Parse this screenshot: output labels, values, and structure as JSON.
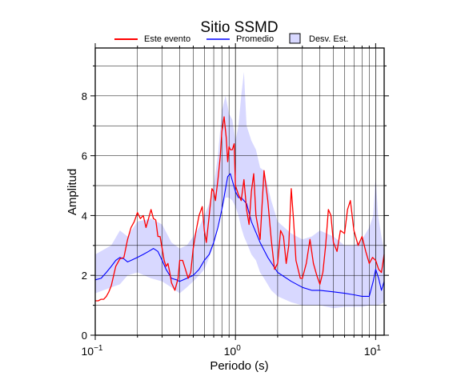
{
  "chart_data": {
    "type": "line",
    "title": "Sitio SSMD",
    "xlabel": "Periodo (s)",
    "ylabel": "Amplitud",
    "xscale": "log",
    "xlim": [
      0.1,
      11.5
    ],
    "ylim": [
      0,
      9.6
    ],
    "grid": true,
    "legend_position": "top",
    "x_tick_labels": [
      {
        "value": 0.1,
        "base": "10",
        "exp": "−1"
      },
      {
        "value": 1,
        "base": "10",
        "exp": "0"
      },
      {
        "value": 10,
        "base": "10",
        "exp": "1"
      }
    ],
    "y_ticks": [
      0,
      2,
      4,
      6,
      8
    ],
    "y_tick_labels": [
      "0",
      "2",
      "4",
      "6",
      "8"
    ],
    "legend": {
      "evento_label": "Este evento",
      "promedio_label": "Promedio",
      "desv_label": "Desv. Est."
    },
    "colors": {
      "evento": "#ff0000",
      "promedio": "#0000ff",
      "band_fill": "#d8d8ff"
    },
    "band": {
      "name": "Desv. Est.",
      "x": [
        0.1,
        0.13,
        0.15,
        0.17,
        0.2,
        0.25,
        0.3,
        0.35,
        0.4,
        0.45,
        0.5,
        0.55,
        0.6,
        0.65,
        0.7,
        0.75,
        0.8,
        0.85,
        0.9,
        0.95,
        1.0,
        1.05,
        1.1,
        1.15,
        1.2,
        1.3,
        1.4,
        1.5,
        1.6,
        1.8,
        2.0,
        2.5,
        3.0,
        3.5,
        4.0,
        5.0,
        6.0,
        7.0,
        8.0,
        9.0,
        9.6,
        10.0,
        10.4,
        11.0,
        11.5
      ],
      "upper": [
        2.7,
        3.0,
        3.5,
        3.3,
        3.8,
        3.9,
        3.7,
        3.1,
        2.9,
        3.0,
        3.3,
        3.6,
        4.0,
        4.4,
        5.0,
        6.0,
        7.5,
        8.0,
        7.4,
        7.2,
        6.5,
        7.0,
        8.0,
        8.8,
        7.0,
        6.5,
        6.2,
        5.6,
        5.5,
        4.5,
        3.8,
        3.4,
        3.2,
        3.3,
        3.5,
        3.3,
        3.0,
        3.0,
        3.2,
        3.6,
        4.0,
        5.3,
        4.0,
        3.3,
        2.8
      ],
      "lower": [
        1.4,
        1.6,
        1.7,
        2.0,
        2.1,
        1.9,
        1.8,
        1.6,
        1.4,
        1.6,
        1.8,
        2.0,
        2.2,
        2.6,
        3.0,
        3.6,
        4.2,
        4.6,
        4.6,
        4.5,
        4.3,
        4.0,
        3.6,
        3.3,
        3.1,
        2.7,
        2.5,
        2.1,
        1.9,
        1.5,
        1.3,
        1.1,
        1.0,
        1.0,
        1.0,
        0.9,
        0.95,
        0.95,
        0.95,
        1.0,
        1.0,
        1.0,
        1.0,
        1.05,
        1.1
      ]
    },
    "series": [
      {
        "name": "Promedio",
        "x": [
          0.1,
          0.11,
          0.12,
          0.13,
          0.14,
          0.15,
          0.16,
          0.17,
          0.18,
          0.2,
          0.22,
          0.24,
          0.26,
          0.28,
          0.3,
          0.32,
          0.35,
          0.38,
          0.4,
          0.45,
          0.5,
          0.55,
          0.6,
          0.65,
          0.7,
          0.75,
          0.8,
          0.85,
          0.88,
          0.92,
          1.0,
          1.05,
          1.1,
          1.2,
          1.3,
          1.5,
          1.7,
          2.0,
          2.5,
          3.0,
          3.5,
          4.0,
          5.0,
          6.0,
          7.0,
          8.0,
          9.0,
          9.6,
          10.0,
          10.5,
          11.0,
          11.5
        ],
        "values": [
          1.85,
          1.9,
          2.1,
          2.3,
          2.5,
          2.6,
          2.55,
          2.45,
          2.5,
          2.6,
          2.7,
          2.8,
          2.9,
          2.8,
          2.5,
          2.2,
          1.9,
          1.85,
          1.8,
          1.9,
          2.0,
          2.2,
          2.5,
          2.7,
          3.1,
          3.6,
          4.2,
          4.9,
          5.3,
          5.4,
          4.8,
          4.6,
          4.6,
          4.4,
          3.8,
          3.1,
          2.6,
          2.1,
          1.8,
          1.6,
          1.5,
          1.5,
          1.45,
          1.4,
          1.35,
          1.3,
          1.3,
          1.8,
          2.2,
          1.9,
          1.5,
          1.8
        ]
      },
      {
        "name": "Este evento",
        "x": [
          0.1,
          0.105,
          0.11,
          0.115,
          0.12,
          0.125,
          0.13,
          0.14,
          0.15,
          0.16,
          0.17,
          0.18,
          0.19,
          0.2,
          0.21,
          0.22,
          0.23,
          0.24,
          0.25,
          0.26,
          0.27,
          0.28,
          0.29,
          0.3,
          0.31,
          0.32,
          0.33,
          0.34,
          0.35,
          0.37,
          0.39,
          0.4,
          0.42,
          0.44,
          0.46,
          0.48,
          0.5,
          0.52,
          0.55,
          0.58,
          0.6,
          0.62,
          0.65,
          0.68,
          0.7,
          0.72,
          0.75,
          0.78,
          0.8,
          0.83,
          0.86,
          0.88,
          0.9,
          0.92,
          0.95,
          0.98,
          1.0,
          1.05,
          1.1,
          1.15,
          1.2,
          1.25,
          1.3,
          1.35,
          1.4,
          1.5,
          1.6,
          1.7,
          1.8,
          1.9,
          2.0,
          2.1,
          2.2,
          2.3,
          2.4,
          2.5,
          2.6,
          2.7,
          2.8,
          2.9,
          3.0,
          3.2,
          3.4,
          3.6,
          3.8,
          4.0,
          4.2,
          4.4,
          4.6,
          4.8,
          5.0,
          5.3,
          5.6,
          6.0,
          6.3,
          6.6,
          7.0,
          7.5,
          8.0,
          8.5,
          9.0,
          9.5,
          10.0,
          10.5,
          11.0,
          11.5
        ],
        "values": [
          1.15,
          1.15,
          1.2,
          1.2,
          1.3,
          1.45,
          1.65,
          2.3,
          2.55,
          2.6,
          3.2,
          3.6,
          3.8,
          4.1,
          3.9,
          4.0,
          3.6,
          3.9,
          4.2,
          3.9,
          3.85,
          3.3,
          3.3,
          2.9,
          2.5,
          2.3,
          2.4,
          2.1,
          1.75,
          1.5,
          1.9,
          2.5,
          2.5,
          2.2,
          1.9,
          2.1,
          2.9,
          3.4,
          4.0,
          4.3,
          3.5,
          3.1,
          4.0,
          4.9,
          4.8,
          4.5,
          5.2,
          6.0,
          6.8,
          7.3,
          6.6,
          5.8,
          6.3,
          6.2,
          6.2,
          6.4,
          5.0,
          4.7,
          4.5,
          5.2,
          4.2,
          3.7,
          4.8,
          5.4,
          4.0,
          3.2,
          5.5,
          4.5,
          3.2,
          2.2,
          2.4,
          3.5,
          3.3,
          2.4,
          3.0,
          4.9,
          3.8,
          2.5,
          2.2,
          1.9,
          1.9,
          2.4,
          3.2,
          2.4,
          2.0,
          1.7,
          2.1,
          3.0,
          4.2,
          4.0,
          3.1,
          2.8,
          3.5,
          3.4,
          4.2,
          4.5,
          3.5,
          3.0,
          3.3,
          2.8,
          2.4,
          2.6,
          2.5,
          2.2,
          2.1,
          2.7
        ]
      }
    ]
  }
}
